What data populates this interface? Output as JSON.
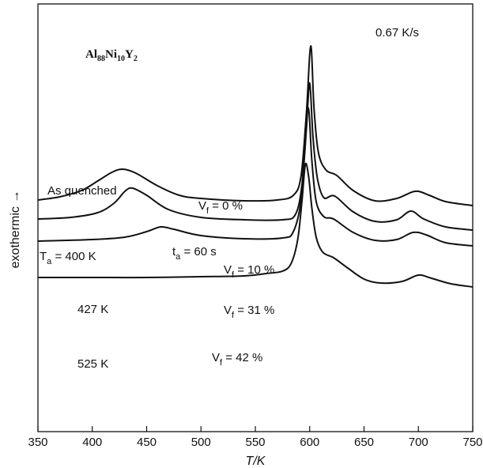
{
  "chart_data": {
    "type": "line",
    "title": "",
    "xlabel": "T/K",
    "ylabel": "exothermic →",
    "xlim": [
      350,
      750
    ],
    "x_ticks": [
      350,
      400,
      450,
      500,
      550,
      600,
      650,
      700,
      750
    ],
    "y_ticks": false,
    "grid": false,
    "rate_label": "0.67 K/s",
    "compound": "Al88Ni10Y2",
    "ta_label": "t",
    "ta_sub": "a",
    "ta_value": " = 60 s",
    "series": [
      {
        "name": "As quenched",
        "vf_label": "V",
        "vf_sub": "f",
        "vf_value": " = 0 %",
        "points": [
          [
            350,
            5.0
          ],
          [
            370,
            5.4
          ],
          [
            390,
            6.2
          ],
          [
            405,
            7.4
          ],
          [
            418,
            8.5
          ],
          [
            428,
            8.9
          ],
          [
            440,
            8.4
          ],
          [
            460,
            6.8
          ],
          [
            480,
            5.6
          ],
          [
            500,
            5.2
          ],
          [
            540,
            4.9
          ],
          [
            570,
            5.0
          ],
          [
            585,
            5.6
          ],
          [
            592,
            8.0
          ],
          [
            597,
            16.0
          ],
          [
            601,
            24.5
          ],
          [
            604,
            16.5
          ],
          [
            608,
            11.0
          ],
          [
            615,
            8.8
          ],
          [
            625,
            8.1
          ],
          [
            640,
            6.2
          ],
          [
            660,
            4.9
          ],
          [
            680,
            5.2
          ],
          [
            697,
            6.1
          ],
          [
            710,
            5.6
          ],
          [
            725,
            4.8
          ],
          [
            750,
            4.3
          ]
        ]
      },
      {
        "name": "T_a = 400 K",
        "label_main": "T",
        "label_sub": "a",
        "label_value": " = 400 K",
        "vf_label": "V",
        "vf_sub": "f",
        "vf_value": " = 10 %",
        "points": [
          [
            350,
            2.6
          ],
          [
            380,
            2.8
          ],
          [
            405,
            3.4
          ],
          [
            420,
            4.6
          ],
          [
            430,
            6.1
          ],
          [
            437,
            6.5
          ],
          [
            450,
            5.6
          ],
          [
            470,
            3.8
          ],
          [
            500,
            2.8
          ],
          [
            540,
            2.5
          ],
          [
            575,
            2.5
          ],
          [
            587,
            3.2
          ],
          [
            593,
            7.0
          ],
          [
            597,
            14.0
          ],
          [
            600,
            19.8
          ],
          [
            603,
            13.0
          ],
          [
            607,
            7.8
          ],
          [
            613,
            5.3
          ],
          [
            623,
            5.5
          ],
          [
            640,
            3.5
          ],
          [
            660,
            2.3
          ],
          [
            680,
            2.5
          ],
          [
            693,
            3.6
          ],
          [
            705,
            2.6
          ],
          [
            725,
            1.6
          ],
          [
            750,
            1.2
          ]
        ]
      },
      {
        "name": "427 K",
        "vf_label": "V",
        "vf_sub": "f",
        "vf_value": " = 31 %",
        "points": [
          [
            350,
            -0.2
          ],
          [
            400,
            0.0
          ],
          [
            430,
            0.3
          ],
          [
            450,
            1.0
          ],
          [
            463,
            1.6
          ],
          [
            475,
            1.3
          ],
          [
            500,
            0.5
          ],
          [
            540,
            0.1
          ],
          [
            575,
            0.2
          ],
          [
            585,
            1.0
          ],
          [
            592,
            5.0
          ],
          [
            596,
            14.0
          ],
          [
            599,
            16.5
          ],
          [
            602,
            10.0
          ],
          [
            606,
            4.8
          ],
          [
            613,
            2.9
          ],
          [
            622,
            2.6
          ],
          [
            640,
            0.9
          ],
          [
            660,
            -0.1
          ],
          [
            680,
            0.0
          ],
          [
            695,
            0.9
          ],
          [
            707,
            0.6
          ],
          [
            725,
            -0.4
          ],
          [
            750,
            -0.8
          ]
        ]
      },
      {
        "name": "525 K",
        "vf_label": "V",
        "vf_sub": "f",
        "vf_value": " = 42 %",
        "points": [
          [
            350,
            -4.8
          ],
          [
            400,
            -4.8
          ],
          [
            450,
            -4.8
          ],
          [
            500,
            -4.7
          ],
          [
            540,
            -4.6
          ],
          [
            560,
            -4.3
          ],
          [
            575,
            -4.0
          ],
          [
            583,
            -3.0
          ],
          [
            589,
            0.0
          ],
          [
            593,
            5.0
          ],
          [
            596,
            9.5
          ],
          [
            599,
            8.0
          ],
          [
            602,
            4.0
          ],
          [
            606,
            0.3
          ],
          [
            612,
            -1.6
          ],
          [
            622,
            -2.3
          ],
          [
            635,
            -3.6
          ],
          [
            650,
            -5.0
          ],
          [
            665,
            -5.5
          ],
          [
            685,
            -5.3
          ],
          [
            700,
            -4.5
          ],
          [
            712,
            -4.9
          ],
          [
            730,
            -5.6
          ],
          [
            750,
            -6.0
          ]
        ]
      }
    ]
  }
}
